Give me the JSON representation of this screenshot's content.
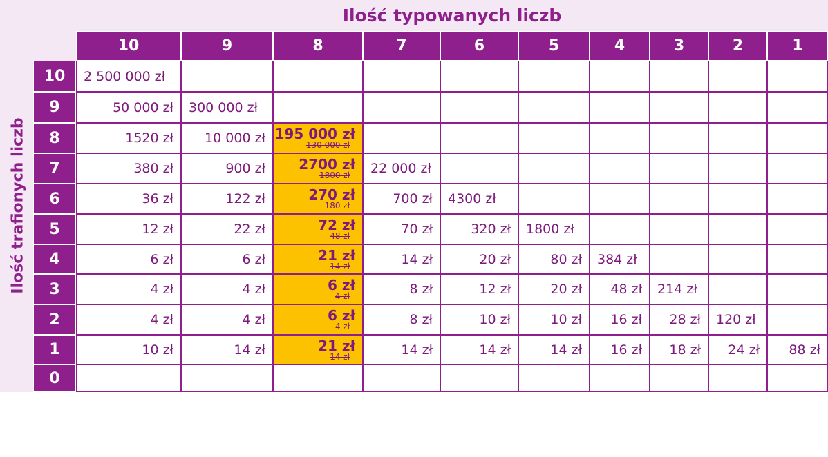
{
  "header": {
    "title": "Ilość typowanych liczb"
  },
  "side_label": "Ilość trafionych liczb",
  "columns": [
    "10",
    "9",
    "8",
    "7",
    "6",
    "5",
    "4",
    "3",
    "2",
    "1"
  ],
  "rows": [
    {
      "label": "10",
      "cells": [
        "2 500 000 zł",
        null,
        null,
        null,
        null,
        null,
        null,
        null,
        null,
        null
      ]
    },
    {
      "label": "9",
      "cells": [
        "50 000 zł",
        "300 000 zł",
        null,
        null,
        null,
        null,
        null,
        null,
        null,
        null
      ]
    },
    {
      "label": "8",
      "cells": [
        "1520 zł",
        "10 000 zł",
        {
          "new": "195 000 zł",
          "old": "130 000 zł"
        },
        null,
        null,
        null,
        null,
        null,
        null,
        null
      ]
    },
    {
      "label": "7",
      "cells": [
        "380 zł",
        "900 zł",
        {
          "new": "2700 zł",
          "old": "1800 zł"
        },
        "22 000 zł",
        null,
        null,
        null,
        null,
        null,
        null
      ]
    },
    {
      "label": "6",
      "cells": [
        "36 zł",
        "122 zł",
        {
          "new": "270 zł",
          "old": "180 zł"
        },
        "700 zł",
        "4300 zł",
        null,
        null,
        null,
        null,
        null
      ]
    },
    {
      "label": "5",
      "cells": [
        "12 zł",
        "22 zł",
        {
          "new": "72 zł",
          "old": "48 zł"
        },
        "70 zł",
        "320 zł",
        "1800 zł",
        null,
        null,
        null,
        null
      ]
    },
    {
      "label": "4",
      "cells": [
        "6 zł",
        "6 zł",
        {
          "new": "21 zł",
          "old": "14 zł"
        },
        "14 zł",
        "20 zł",
        "80 zł",
        "384 zł",
        null,
        null,
        null
      ]
    },
    {
      "label": "3",
      "cells": [
        "4 zł",
        "4 zł",
        {
          "new": "6 zł",
          "old": "4 zł"
        },
        "8 zł",
        "12 zł",
        "20 zł",
        "48 zł",
        "214 zł",
        null,
        null
      ]
    },
    {
      "label": "2",
      "cells": [
        "4 zł",
        "4 zł",
        {
          "new": "6 zł",
          "old": "4 zł"
        },
        "8 zł",
        "10 zł",
        "10 zł",
        "16 zł",
        "28 zł",
        "120 zł",
        null
      ]
    },
    {
      "label": "1",
      "cells": [
        "10 zł",
        "14 zł",
        {
          "new": "21 zł",
          "old": "14 zł"
        },
        "14 zł",
        "14 zł",
        "14 zł",
        "16 zł",
        "18 zł",
        "24 zł",
        "88 zł"
      ]
    },
    {
      "label": "0",
      "cells": [
        null,
        null,
        null,
        null,
        null,
        null,
        null,
        null,
        null,
        null
      ]
    }
  ]
}
